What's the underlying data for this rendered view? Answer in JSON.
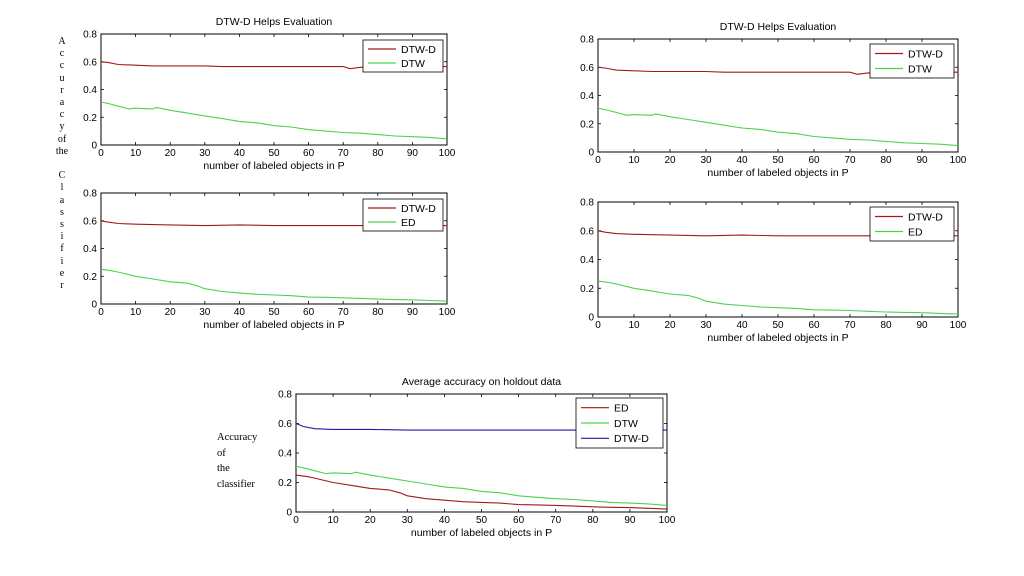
{
  "side_label_vertical": [
    "A",
    "c",
    "c",
    "u",
    "r",
    "a",
    "c",
    "y",
    "of",
    "the",
    "",
    "C",
    "l",
    "a",
    "s",
    "s",
    "i",
    "f",
    "i",
    "e",
    "r"
  ],
  "bottom_side_label": [
    "Accuracy",
    "of",
    "the",
    "classifier"
  ],
  "colors": {
    "dtwd": "#a31a1a",
    "dtw": "#4ed24e",
    "ed": "#4ed24e",
    "dtwd_avg": "#1a1aa8",
    "ed_avg": "#a31a1a",
    "dtw_avg": "#4ed24e"
  },
  "chart_data": [
    {
      "type": "line",
      "title": "DTW-D Helps Evaluation",
      "xlabel": "number of labeled objects in P",
      "ylabel": "",
      "xlim": [
        0,
        100
      ],
      "ylim": [
        0,
        0.8
      ],
      "xticks": [
        0,
        10,
        20,
        30,
        40,
        50,
        60,
        70,
        80,
        90,
        100
      ],
      "yticks": [
        0,
        0.2,
        0.4,
        0.6,
        0.8
      ],
      "legend_position": "top-right",
      "series": [
        {
          "name": "DTW-D",
          "color": "#a31a1a",
          "x": [
            0,
            2,
            5,
            10,
            15,
            20,
            25,
            30,
            35,
            40,
            45,
            50,
            55,
            60,
            65,
            70,
            72,
            75,
            80,
            85,
            90,
            95,
            100
          ],
          "y": [
            0.6,
            0.595,
            0.58,
            0.575,
            0.57,
            0.57,
            0.57,
            0.57,
            0.565,
            0.565,
            0.565,
            0.565,
            0.565,
            0.565,
            0.565,
            0.565,
            0.55,
            0.56,
            0.565,
            0.565,
            0.565,
            0.565,
            0.565
          ]
        },
        {
          "name": "DTW",
          "color": "#4ed24e",
          "x": [
            0,
            2,
            5,
            8,
            10,
            15,
            16,
            20,
            25,
            30,
            35,
            40,
            45,
            50,
            55,
            60,
            65,
            70,
            75,
            80,
            85,
            90,
            95,
            100
          ],
          "y": [
            0.31,
            0.3,
            0.28,
            0.26,
            0.265,
            0.26,
            0.27,
            0.25,
            0.23,
            0.21,
            0.19,
            0.17,
            0.16,
            0.14,
            0.13,
            0.11,
            0.1,
            0.09,
            0.085,
            0.075,
            0.065,
            0.06,
            0.055,
            0.045
          ]
        }
      ]
    },
    {
      "type": "line",
      "title": "",
      "xlabel": "number of labeled objects in P",
      "ylabel": "",
      "xlim": [
        0,
        100
      ],
      "ylim": [
        0,
        0.8
      ],
      "xticks": [
        0,
        10,
        20,
        30,
        40,
        50,
        60,
        70,
        80,
        90,
        100
      ],
      "yticks": [
        0,
        0.2,
        0.4,
        0.6,
        0.8
      ],
      "legend_position": "top-right",
      "series": [
        {
          "name": "DTW-D",
          "color": "#a31a1a",
          "x": [
            0,
            2,
            5,
            10,
            20,
            30,
            40,
            50,
            60,
            70,
            80,
            90,
            100
          ],
          "y": [
            0.6,
            0.59,
            0.58,
            0.575,
            0.57,
            0.565,
            0.57,
            0.565,
            0.565,
            0.565,
            0.565,
            0.565,
            0.565
          ]
        },
        {
          "name": "ED",
          "color": "#4ed24e",
          "x": [
            0,
            3,
            5,
            10,
            15,
            20,
            25,
            28,
            30,
            35,
            40,
            45,
            50,
            55,
            60,
            65,
            70,
            75,
            80,
            85,
            90,
            95,
            100
          ],
          "y": [
            0.25,
            0.24,
            0.23,
            0.2,
            0.18,
            0.16,
            0.15,
            0.13,
            0.11,
            0.09,
            0.08,
            0.07,
            0.065,
            0.06,
            0.05,
            0.048,
            0.045,
            0.04,
            0.035,
            0.032,
            0.03,
            0.025,
            0.02
          ]
        }
      ]
    },
    {
      "type": "line",
      "title": "DTW-D Helps Evaluation",
      "xlabel": "number of labeled objects in P",
      "ylabel": "",
      "xlim": [
        0,
        100
      ],
      "ylim": [
        0,
        0.8
      ],
      "xticks": [
        0,
        10,
        20,
        30,
        40,
        50,
        60,
        70,
        80,
        90,
        100
      ],
      "yticks": [
        0,
        0.2,
        0.4,
        0.6,
        0.8
      ],
      "legend_position": "top-right",
      "series": [
        {
          "name": "DTW-D",
          "color": "#a31a1a",
          "x": [
            0,
            2,
            5,
            10,
            15,
            20,
            25,
            30,
            35,
            40,
            45,
            50,
            55,
            60,
            65,
            70,
            72,
            75,
            80,
            85,
            90,
            95,
            100
          ],
          "y": [
            0.6,
            0.595,
            0.58,
            0.575,
            0.57,
            0.57,
            0.57,
            0.57,
            0.565,
            0.565,
            0.565,
            0.565,
            0.565,
            0.565,
            0.565,
            0.565,
            0.55,
            0.56,
            0.565,
            0.565,
            0.565,
            0.565,
            0.565
          ]
        },
        {
          "name": "DTW",
          "color": "#4ed24e",
          "x": [
            0,
            2,
            5,
            8,
            10,
            15,
            16,
            20,
            25,
            30,
            35,
            40,
            45,
            50,
            55,
            60,
            65,
            70,
            75,
            80,
            85,
            90,
            95,
            100
          ],
          "y": [
            0.31,
            0.3,
            0.28,
            0.26,
            0.265,
            0.26,
            0.27,
            0.25,
            0.23,
            0.21,
            0.19,
            0.17,
            0.16,
            0.14,
            0.13,
            0.11,
            0.1,
            0.09,
            0.085,
            0.075,
            0.065,
            0.06,
            0.055,
            0.045
          ]
        }
      ]
    },
    {
      "type": "line",
      "title": "",
      "xlabel": "number of labeled objects in P",
      "ylabel": "",
      "xlim": [
        0,
        100
      ],
      "ylim": [
        0,
        0.8
      ],
      "xticks": [
        0,
        10,
        20,
        30,
        40,
        50,
        60,
        70,
        80,
        90,
        100
      ],
      "yticks": [
        0,
        0.2,
        0.4,
        0.6,
        0.8
      ],
      "legend_position": "top-right",
      "series": [
        {
          "name": "DTW-D",
          "color": "#a31a1a",
          "x": [
            0,
            2,
            5,
            10,
            20,
            30,
            40,
            50,
            60,
            70,
            80,
            90,
            100
          ],
          "y": [
            0.6,
            0.59,
            0.58,
            0.575,
            0.57,
            0.565,
            0.57,
            0.565,
            0.565,
            0.565,
            0.565,
            0.565,
            0.565
          ]
        },
        {
          "name": "ED",
          "color": "#4ed24e",
          "x": [
            0,
            3,
            5,
            10,
            15,
            20,
            25,
            28,
            30,
            35,
            40,
            45,
            50,
            55,
            60,
            65,
            70,
            75,
            80,
            85,
            90,
            95,
            100
          ],
          "y": [
            0.25,
            0.24,
            0.23,
            0.2,
            0.18,
            0.16,
            0.15,
            0.13,
            0.11,
            0.09,
            0.08,
            0.07,
            0.065,
            0.06,
            0.05,
            0.048,
            0.045,
            0.04,
            0.035,
            0.032,
            0.03,
            0.025,
            0.02
          ]
        }
      ]
    },
    {
      "type": "line",
      "title": "Average accuracy on holdout data",
      "xlabel": "number of labeled objects in P",
      "ylabel": "",
      "xlim": [
        0,
        100
      ],
      "ylim": [
        0,
        0.8
      ],
      "xticks": [
        0,
        10,
        20,
        30,
        40,
        50,
        60,
        70,
        80,
        90,
        100
      ],
      "yticks": [
        0,
        0.2,
        0.4,
        0.6,
        0.8
      ],
      "legend_position": "top-right",
      "series": [
        {
          "name": "ED",
          "color": "#a31a1a",
          "x": [
            0,
            3,
            5,
            10,
            15,
            20,
            25,
            28,
            30,
            35,
            40,
            45,
            50,
            55,
            60,
            65,
            70,
            75,
            80,
            85,
            90,
            95,
            100
          ],
          "y": [
            0.25,
            0.24,
            0.23,
            0.2,
            0.18,
            0.16,
            0.15,
            0.13,
            0.11,
            0.09,
            0.08,
            0.07,
            0.065,
            0.06,
            0.05,
            0.048,
            0.045,
            0.04,
            0.035,
            0.032,
            0.03,
            0.025,
            0.02
          ]
        },
        {
          "name": "DTW",
          "color": "#4ed24e",
          "x": [
            0,
            2,
            5,
            8,
            10,
            15,
            16,
            20,
            25,
            30,
            35,
            40,
            45,
            50,
            55,
            60,
            65,
            70,
            75,
            80,
            85,
            90,
            95,
            100
          ],
          "y": [
            0.31,
            0.3,
            0.28,
            0.26,
            0.265,
            0.26,
            0.27,
            0.25,
            0.23,
            0.21,
            0.19,
            0.17,
            0.16,
            0.14,
            0.13,
            0.11,
            0.1,
            0.09,
            0.085,
            0.075,
            0.065,
            0.06,
            0.055,
            0.045
          ]
        },
        {
          "name": "DTW-D",
          "color": "#1a1aa8",
          "x": [
            0,
            2,
            5,
            10,
            20,
            30,
            40,
            50,
            60,
            70,
            80,
            90,
            100
          ],
          "y": [
            0.6,
            0.58,
            0.565,
            0.56,
            0.56,
            0.555,
            0.555,
            0.555,
            0.555,
            0.555,
            0.555,
            0.555,
            0.555
          ]
        }
      ]
    }
  ]
}
